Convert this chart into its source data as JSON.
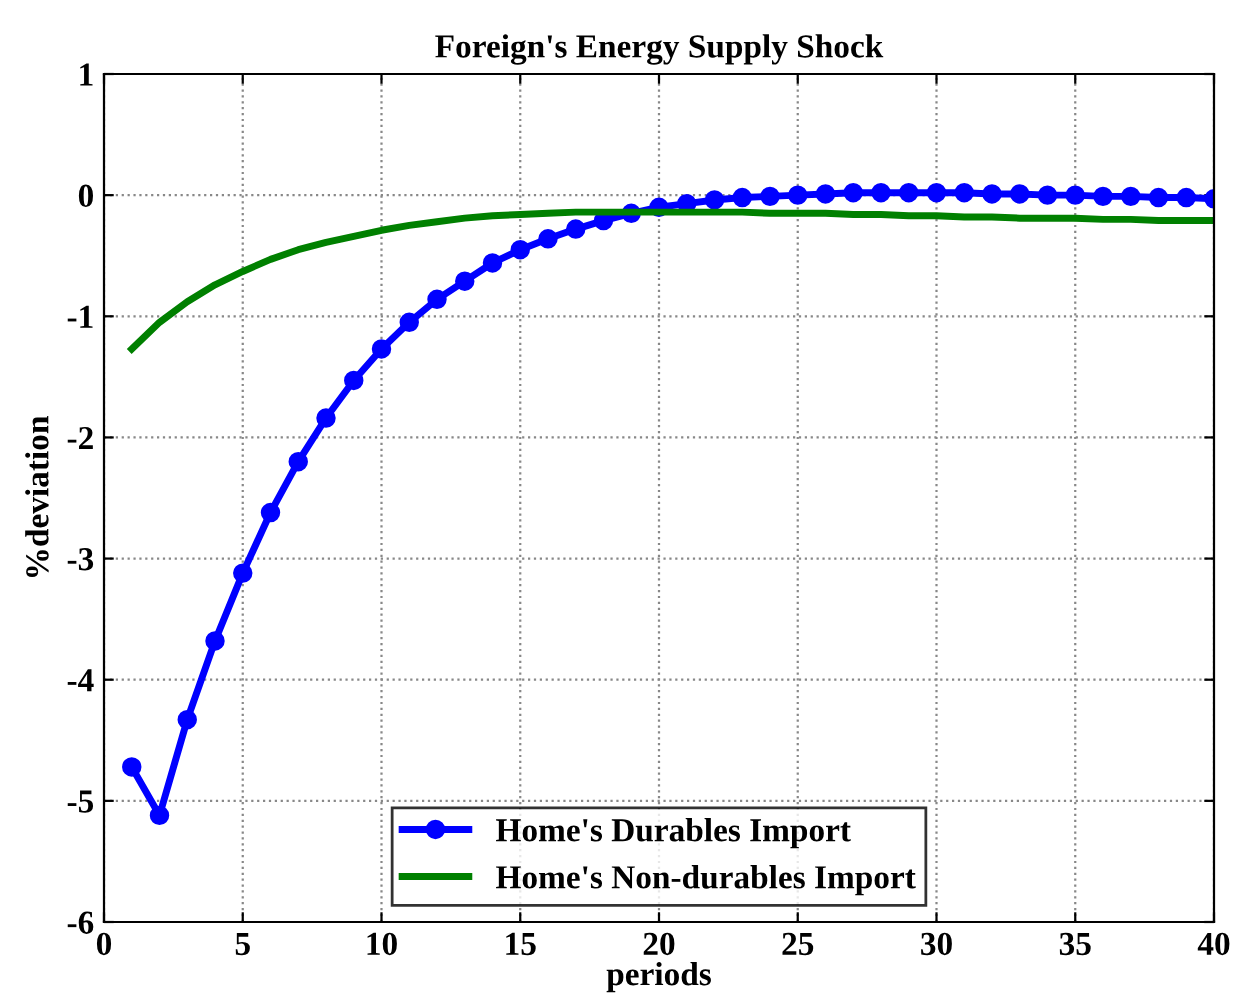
{
  "chart_data": {
    "type": "line",
    "title": "Foreign's Energy Supply Shock",
    "xlabel": "periods",
    "ylabel": "%deviation",
    "x": [
      1,
      2,
      3,
      4,
      5,
      6,
      7,
      8,
      9,
      10,
      11,
      12,
      13,
      14,
      15,
      16,
      17,
      18,
      19,
      20,
      21,
      22,
      23,
      24,
      25,
      26,
      27,
      28,
      29,
      30,
      31,
      32,
      33,
      34,
      35,
      36,
      37,
      38,
      39,
      40
    ],
    "series": [
      {
        "name": "Home's Durables Import",
        "color": "#0000ff",
        "marker": "circle",
        "values": [
          -4.72,
          -5.12,
          -4.33,
          -3.68,
          -3.12,
          -2.62,
          -2.2,
          -1.84,
          -1.53,
          -1.27,
          -1.05,
          -0.86,
          -0.71,
          -0.56,
          -0.45,
          -0.36,
          -0.28,
          -0.21,
          -0.15,
          -0.1,
          -0.07,
          -0.04,
          -0.02,
          -0.01,
          0.0,
          0.01,
          0.02,
          0.02,
          0.02,
          0.02,
          0.02,
          0.01,
          0.01,
          0.0,
          0.0,
          -0.01,
          -0.01,
          -0.02,
          -0.02,
          -0.03
        ]
      },
      {
        "name": "Home's Non-durables Import",
        "color": "#008000",
        "marker": "none",
        "values": [
          -1.27,
          -1.05,
          -0.88,
          -0.74,
          -0.63,
          -0.53,
          -0.45,
          -0.39,
          -0.34,
          -0.29,
          -0.25,
          -0.22,
          -0.19,
          -0.17,
          -0.16,
          -0.15,
          -0.14,
          -0.14,
          -0.14,
          -0.14,
          -0.14,
          -0.14,
          -0.14,
          -0.15,
          -0.15,
          -0.15,
          -0.16,
          -0.16,
          -0.17,
          -0.17,
          -0.18,
          -0.18,
          -0.19,
          -0.19,
          -0.19,
          -0.2,
          -0.2,
          -0.21,
          -0.21,
          -0.21
        ]
      }
    ],
    "xlim": [
      0,
      40
    ],
    "xticks": [
      0,
      5,
      10,
      15,
      20,
      25,
      30,
      35,
      40
    ],
    "ylim": [
      -6,
      1
    ],
    "yticks": [
      -6,
      -5,
      -4,
      -3,
      -2,
      -1,
      0,
      1
    ],
    "grid": true,
    "legend": "bottom",
    "line_style": "solid"
  }
}
